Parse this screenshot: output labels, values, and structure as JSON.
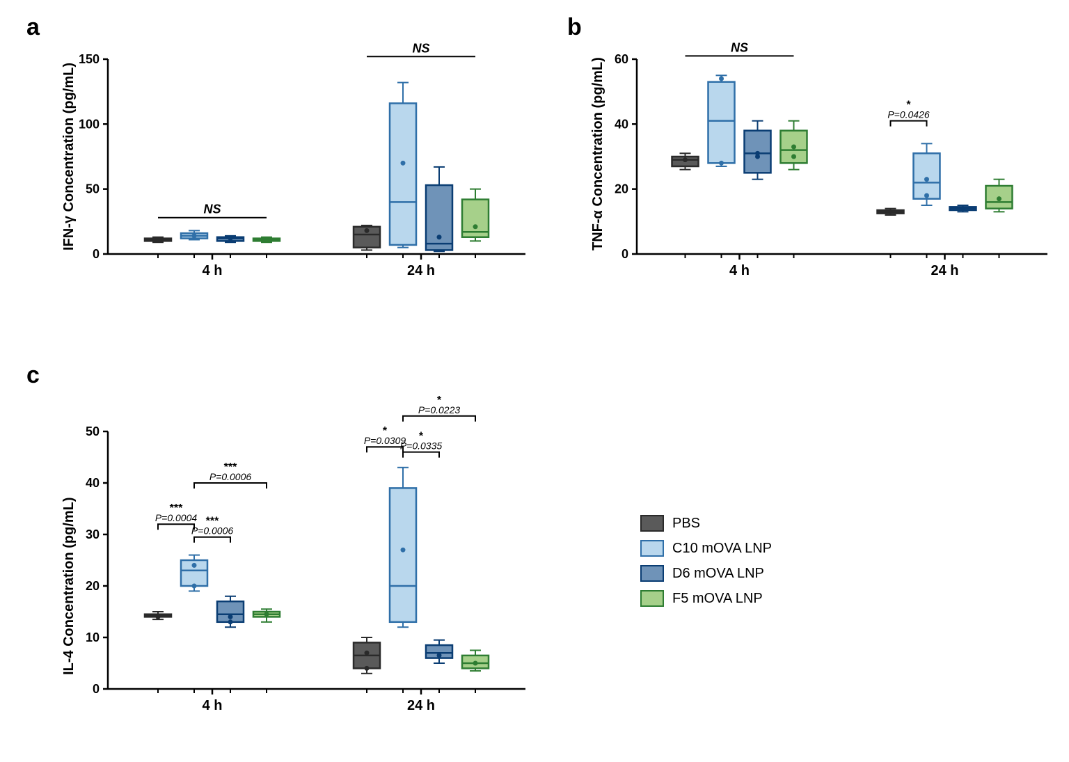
{
  "colors": {
    "pbs_fill": "#5a5a5a",
    "pbs_stroke": "#2a2a2a",
    "c10_fill": "#b9d7ed",
    "c10_stroke": "#2f6fa8",
    "d6_fill": "#6f93b8",
    "d6_stroke": "#0a3d73",
    "f5_fill": "#a6d08a",
    "f5_stroke": "#2e7d32",
    "axis": "#000000",
    "bg": "#ffffff"
  },
  "legend": {
    "items": [
      {
        "label": "PBS",
        "fill_key": "pbs_fill",
        "stroke_key": "pbs_stroke"
      },
      {
        "label": "C10 mOVA LNP",
        "fill_key": "c10_fill",
        "stroke_key": "c10_stroke"
      },
      {
        "label": "D6 mOVA LNP",
        "fill_key": "d6_fill",
        "stroke_key": "d6_stroke"
      },
      {
        "label": "F5 mOVA LNP",
        "fill_key": "f5_fill",
        "stroke_key": "f5_stroke"
      }
    ]
  },
  "panels": {
    "a": {
      "label": "a",
      "ylabel": "IFN-γ Concentration (pg/mL)",
      "ylim": [
        0,
        150
      ],
      "yticks": [
        0,
        50,
        100,
        150
      ],
      "x_groups": [
        "4 h",
        "24 h"
      ],
      "groups": [
        {
          "series": [
            {
              "key": "pbs",
              "min": 9,
              "q1": 10,
              "med": 11,
              "q3": 12,
              "max": 13,
              "pts": [
                11
              ]
            },
            {
              "key": "c10",
              "min": 11,
              "q1": 12,
              "med": 14,
              "q3": 16,
              "max": 18,
              "pts": [
                14
              ]
            },
            {
              "key": "d6",
              "min": 9,
              "q1": 10,
              "med": 12,
              "q3": 13,
              "max": 14,
              "pts": [
                12
              ]
            },
            {
              "key": "f5",
              "min": 9,
              "q1": 10,
              "med": 11,
              "q3": 12,
              "max": 13,
              "pts": [
                11
              ]
            }
          ],
          "sig": [
            {
              "type": "ns",
              "text": "NS",
              "from": 0,
              "to": 3,
              "y": 28
            }
          ]
        },
        {
          "series": [
            {
              "key": "pbs",
              "min": 3,
              "q1": 5,
              "med": 15,
              "q3": 21,
              "max": 22,
              "pts": [
                18
              ]
            },
            {
              "key": "c10",
              "min": 5,
              "q1": 7,
              "med": 40,
              "q3": 116,
              "max": 132,
              "pts": [
                70
              ]
            },
            {
              "key": "d6",
              "min": 2,
              "q1": 3,
              "med": 8,
              "q3": 53,
              "max": 67,
              "pts": [
                13
              ]
            },
            {
              "key": "f5",
              "min": 10,
              "q1": 13,
              "med": 17,
              "q3": 42,
              "max": 50,
              "pts": [
                21
              ]
            }
          ],
          "sig": [
            {
              "type": "ns",
              "text": "NS",
              "from": 0,
              "to": 3,
              "y": 152
            }
          ]
        }
      ]
    },
    "b": {
      "label": "b",
      "ylabel": "TNF-α Concentration (pg/mL)",
      "ylim": [
        0,
        60
      ],
      "yticks": [
        0,
        20,
        40,
        60
      ],
      "x_groups": [
        "4 h",
        "24 h"
      ],
      "groups": [
        {
          "series": [
            {
              "key": "pbs",
              "min": 26,
              "q1": 27,
              "med": 29,
              "q3": 30,
              "max": 31,
              "pts": [
                29
              ]
            },
            {
              "key": "c10",
              "min": 27,
              "q1": 28,
              "med": 41,
              "q3": 53,
              "max": 55,
              "pts": [
                28,
                54
              ]
            },
            {
              "key": "d6",
              "min": 23,
              "q1": 25,
              "med": 31,
              "q3": 38,
              "max": 41,
              "pts": [
                30,
                31
              ]
            },
            {
              "key": "f5",
              "min": 26,
              "q1": 28,
              "med": 32,
              "q3": 38,
              "max": 41,
              "pts": [
                30,
                33
              ]
            }
          ],
          "sig": [
            {
              "type": "ns",
              "text": "NS",
              "from": 0,
              "to": 3,
              "y": 61
            }
          ]
        },
        {
          "series": [
            {
              "key": "pbs",
              "min": 12,
              "q1": 12.5,
              "med": 13,
              "q3": 13.5,
              "max": 14,
              "pts": [
                13
              ]
            },
            {
              "key": "c10",
              "min": 15,
              "q1": 17,
              "med": 22,
              "q3": 31,
              "max": 34,
              "pts": [
                18,
                23
              ]
            },
            {
              "key": "d6",
              "min": 13,
              "q1": 13.5,
              "med": 14,
              "q3": 14.5,
              "max": 15,
              "pts": [
                14
              ]
            },
            {
              "key": "f5",
              "min": 13,
              "q1": 14,
              "med": 16,
              "q3": 21,
              "max": 23,
              "pts": [
                17
              ]
            }
          ],
          "sig": [
            {
              "type": "bracket",
              "stars": "*",
              "ptext": "P=0.0426",
              "from": 0,
              "to": 1,
              "y": 41
            }
          ]
        }
      ]
    },
    "c": {
      "label": "c",
      "ylabel": "IL-4 Concentration (pg/mL)",
      "ylim": [
        0,
        50
      ],
      "yticks": [
        0,
        10,
        20,
        30,
        40,
        50
      ],
      "x_groups": [
        "4 h",
        "24 h"
      ],
      "groups": [
        {
          "series": [
            {
              "key": "pbs",
              "min": 13.5,
              "q1": 14,
              "med": 14.2,
              "q3": 14.5,
              "max": 15,
              "pts": [
                14
              ]
            },
            {
              "key": "c10",
              "min": 19,
              "q1": 20,
              "med": 23,
              "q3": 25,
              "max": 26,
              "pts": [
                24,
                20
              ]
            },
            {
              "key": "d6",
              "min": 12,
              "q1": 13,
              "med": 14.5,
              "q3": 17,
              "max": 18,
              "pts": [
                13,
                14
              ]
            },
            {
              "key": "f5",
              "min": 13,
              "q1": 14,
              "med": 14.5,
              "q3": 15,
              "max": 15.5,
              "pts": [
                14.5
              ]
            }
          ],
          "sig": [
            {
              "type": "bracket",
              "stars": "***",
              "ptext": "P=0.0004",
              "from": 0,
              "to": 1,
              "y": 32
            },
            {
              "type": "bracket",
              "stars": "***",
              "ptext": "P=0.0006",
              "from": 1,
              "to": 2,
              "y": 29.5
            },
            {
              "type": "bracket",
              "stars": "***",
              "ptext": "P=0.0006",
              "from": 1,
              "to": 3,
              "y": 40
            }
          ]
        },
        {
          "series": [
            {
              "key": "pbs",
              "min": 3,
              "q1": 4,
              "med": 6.5,
              "q3": 9,
              "max": 10,
              "pts": [
                4,
                7
              ]
            },
            {
              "key": "c10",
              "min": 12,
              "q1": 13,
              "med": 20,
              "q3": 39,
              "max": 43,
              "pts": [
                27
              ]
            },
            {
              "key": "d6",
              "min": 5,
              "q1": 6,
              "med": 7,
              "q3": 8.5,
              "max": 9.5,
              "pts": [
                6.5
              ]
            },
            {
              "key": "f5",
              "min": 3.5,
              "q1": 4,
              "med": 5,
              "q3": 6.5,
              "max": 7.5,
              "pts": [
                5
              ]
            }
          ],
          "sig": [
            {
              "type": "bracket",
              "stars": "*",
              "ptext": "P=0.0309",
              "from": 0,
              "to": 1,
              "y": 47
            },
            {
              "type": "bracket",
              "stars": "*",
              "ptext": "P=0.0335",
              "from": 1,
              "to": 2,
              "y": 46
            },
            {
              "type": "bracket",
              "stars": "*",
              "ptext": "P=0.0223",
              "from": 1,
              "to": 3,
              "y": 53
            }
          ]
        }
      ]
    }
  }
}
